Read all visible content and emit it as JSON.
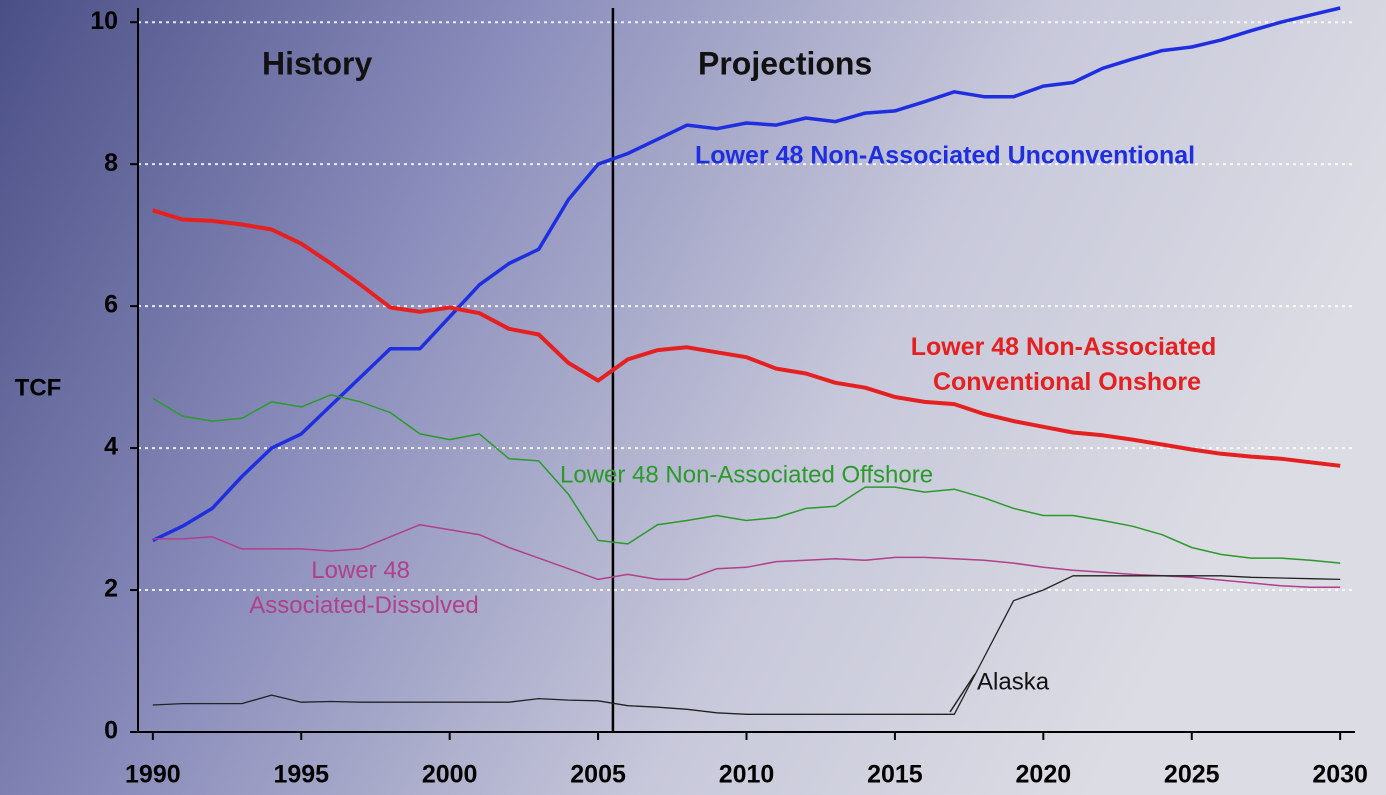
{
  "chart_data": {
    "type": "line",
    "y_label": "TCF",
    "annotations": [
      "History",
      "Projections"
    ],
    "divider": 2005.5,
    "x": [
      1990,
      1991,
      1992,
      1993,
      1994,
      1995,
      1996,
      1997,
      1998,
      1999,
      2000,
      2001,
      2002,
      2003,
      2004,
      2005,
      2006,
      2007,
      2008,
      2009,
      2010,
      2011,
      2012,
      2013,
      2014,
      2015,
      2016,
      2017,
      2018,
      2019,
      2020,
      2021,
      2022,
      2023,
      2024,
      2025,
      2026,
      2027,
      2028,
      2029,
      2030
    ],
    "xlim": [
      1989.5,
      2030.5
    ],
    "xticks": [
      1990,
      1995,
      2000,
      2005,
      2010,
      2015,
      2020,
      2025,
      2030
    ],
    "ylim": [
      0,
      10.2
    ],
    "yticks": [
      0,
      2,
      4,
      6,
      8,
      10
    ],
    "grid": true,
    "series": [
      {
        "name": "Lower 48 Non-Associated Unconventional",
        "color": "#1f2fe0",
        "values": [
          2.7,
          2.9,
          3.15,
          3.6,
          4.0,
          4.2,
          4.6,
          5.0,
          5.4,
          5.4,
          5.85,
          6.3,
          6.6,
          6.8,
          7.5,
          8.0,
          8.15,
          8.35,
          8.55,
          8.5,
          8.58,
          8.55,
          8.65,
          8.6,
          8.72,
          8.75,
          8.88,
          9.02,
          8.95,
          8.95,
          9.1,
          9.15,
          9.35,
          9.48,
          9.6,
          9.65,
          9.75,
          9.88,
          10.0,
          10.1,
          10.2
        ]
      },
      {
        "name": "Lower 48 Non-Associated Conventional Onshore",
        "color": "#e52020",
        "values": [
          7.35,
          7.22,
          7.2,
          7.15,
          7.08,
          6.88,
          6.6,
          6.3,
          5.98,
          5.92,
          5.98,
          5.9,
          5.68,
          5.6,
          5.2,
          4.95,
          5.25,
          5.38,
          5.42,
          5.35,
          5.28,
          5.12,
          5.05,
          4.92,
          4.85,
          4.72,
          4.65,
          4.62,
          4.48,
          4.38,
          4.3,
          4.22,
          4.18,
          4.12,
          4.05,
          3.98,
          3.92,
          3.88,
          3.85,
          3.8,
          3.75
        ]
      },
      {
        "name": "Lower 48 Non-Associated Offshore",
        "color": "#2a9a2a",
        "values": [
          4.7,
          4.45,
          4.38,
          4.42,
          4.65,
          4.58,
          4.75,
          4.65,
          4.5,
          4.2,
          4.12,
          4.2,
          3.85,
          3.82,
          3.35,
          2.7,
          2.65,
          2.92,
          2.98,
          3.05,
          2.98,
          3.02,
          3.15,
          3.18,
          3.45,
          3.45,
          3.38,
          3.42,
          3.3,
          3.15,
          3.05,
          3.05,
          2.98,
          2.9,
          2.78,
          2.6,
          2.5,
          2.45,
          2.45,
          2.42,
          2.38
        ]
      },
      {
        "name": "Lower 48 Associated-Dissolved",
        "color": "#b0408a",
        "values": [
          2.72,
          2.72,
          2.75,
          2.58,
          2.58,
          2.58,
          2.55,
          2.58,
          2.75,
          2.92,
          2.85,
          2.78,
          2.6,
          2.45,
          2.3,
          2.15,
          2.22,
          2.15,
          2.15,
          2.3,
          2.32,
          2.4,
          2.42,
          2.44,
          2.42,
          2.46,
          2.46,
          2.44,
          2.42,
          2.38,
          2.32,
          2.28,
          2.25,
          2.22,
          2.2,
          2.18,
          2.14,
          2.1,
          2.06,
          2.04,
          2.04
        ]
      },
      {
        "name": "Alaska",
        "color": "#222222",
        "values": [
          0.38,
          0.4,
          0.4,
          0.4,
          0.52,
          0.42,
          0.43,
          0.42,
          0.42,
          0.42,
          0.42,
          0.42,
          0.42,
          0.47,
          0.45,
          0.44,
          0.37,
          0.35,
          0.32,
          0.27,
          0.25,
          0.25,
          0.25,
          0.25,
          0.25,
          0.25,
          0.25,
          0.25,
          1.05,
          1.85,
          2.0,
          2.2,
          2.2,
          2.2,
          2.2,
          2.2,
          2.2,
          2.18,
          2.17,
          2.16,
          2.15
        ]
      }
    ]
  }
}
